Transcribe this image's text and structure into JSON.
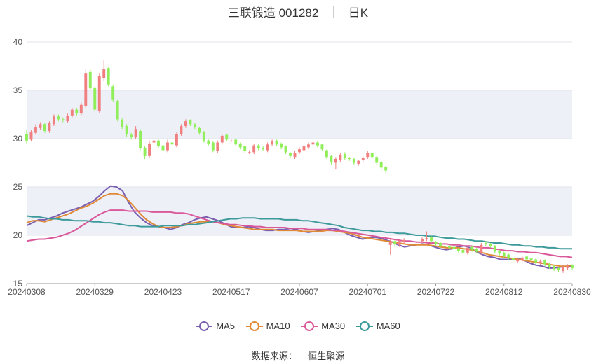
{
  "header": {
    "title": "三联锻造 001282",
    "period": "日K"
  },
  "footer": {
    "source_label": "数据来源：",
    "source_name": "恒生聚源"
  },
  "colors": {
    "up": "#f08080",
    "down": "#90ee5a",
    "ma5": "#7b5fb0",
    "ma10": "#e08a35",
    "ma30": "#d9589a",
    "ma60": "#3d9a9a",
    "band": "#eef0f8",
    "grid": "#e0e3ea",
    "axis": "#555555"
  },
  "chart_data": {
    "type": "candlestick",
    "title": "三联锻造 001282 日K",
    "ylim": [
      15,
      40
    ],
    "yticks": [
      15,
      20,
      25,
      30,
      35,
      40
    ],
    "xtick_labels": [
      "20240308",
      "20240329",
      "20240423",
      "20240517",
      "20240607",
      "20240701",
      "20240722",
      "20240812",
      "20240830"
    ],
    "num_days": 121,
    "trading_gap_days": [
      84,
      85,
      86
    ],
    "closes": [
      29.8,
      30.7,
      31.2,
      31.5,
      30.8,
      31.6,
      32.3,
      32.0,
      31.9,
      32.4,
      33.0,
      32.6,
      33.5,
      36.8,
      35.2,
      33.0,
      36.5,
      37.2,
      35.6,
      34.0,
      32.0,
      31.2,
      30.5,
      30.2,
      31.0,
      29.0,
      28.2,
      29.5,
      29.8,
      29.2,
      28.8,
      29.6,
      29.4,
      30.5,
      31.3,
      31.8,
      31.5,
      31.2,
      30.6,
      29.8,
      29.5,
      28.8,
      29.6,
      30.3,
      29.9,
      29.8,
      29.4,
      29.1,
      28.7,
      28.6,
      29.3,
      29.0,
      28.9,
      29.4,
      29.7,
      29.4,
      29.1,
      28.6,
      28.2,
      28.5,
      28.9,
      29.2,
      29.4,
      29.6,
      29.3,
      28.9,
      28.1,
      27.6,
      27.9,
      28.3,
      28.0,
      27.9,
      27.5,
      27.7,
      28.0,
      28.5,
      28.1,
      27.5,
      27.0,
      26.7,
      19.3,
      19.1,
      19.4,
      19.5,
      19.6,
      19.7,
      19.4,
      19.1,
      18.9,
      18.8,
      18.7,
      18.6,
      18.4,
      18.2,
      18.7,
      18.5,
      18.3,
      19.0,
      19.1,
      18.9,
      18.3,
      18.1,
      17.9,
      17.6,
      17.4,
      17.5,
      17.7,
      17.5,
      17.4,
      17.2,
      17.3,
      17.0,
      16.7,
      16.5,
      16.4,
      16.7,
      16.8,
      16.6,
      16.7,
      17.0,
      17.1
    ],
    "opens": [
      30.5,
      29.9,
      30.6,
      31.1,
      31.5,
      30.8,
      31.5,
      32.3,
      32.0,
      31.8,
      32.4,
      33.0,
      32.6,
      33.4,
      36.9,
      35.3,
      32.9,
      36.3,
      37.3,
      35.4,
      33.9,
      31.9,
      31.3,
      30.4,
      30.2,
      30.8,
      29.0,
      28.2,
      29.6,
      29.8,
      29.3,
      28.8,
      29.6,
      29.3,
      30.5,
      31.3,
      31.9,
      31.5,
      31.1,
      30.7,
      29.8,
      29.6,
      28.7,
      29.6,
      30.4,
      29.8,
      29.9,
      29.5,
      29.2,
      28.6,
      28.6,
      29.3,
      29.0,
      28.8,
      29.4,
      29.8,
      29.5,
      29.2,
      28.5,
      28.1,
      28.6,
      28.8,
      29.1,
      29.4,
      29.6,
      29.4,
      28.8,
      28.2,
      27.5,
      27.8,
      28.4,
      28.0,
      27.9,
      27.4,
      27.8,
      28.1,
      28.5,
      28.1,
      27.6,
      27.1,
      19.0,
      19.4,
      19.0,
      19.3,
      19.4,
      19.6,
      19.8,
      19.3,
      19.2,
      18.9,
      18.9,
      18.8,
      18.6,
      18.5,
      18.2,
      18.8,
      18.6,
      18.2,
      19.2,
      19.1,
      18.9,
      18.4,
      18.2,
      18.0,
      17.6,
      17.3,
      17.4,
      17.8,
      17.6,
      17.5,
      17.1,
      17.4,
      17.0,
      16.8,
      16.6,
      16.3,
      16.6,
      16.9,
      16.5,
      16.6,
      16.9
    ],
    "highs": [
      30.9,
      30.9,
      31.5,
      31.7,
      31.6,
      31.8,
      32.5,
      32.5,
      32.2,
      32.6,
      33.2,
      33.2,
      33.8,
      37.2,
      37.2,
      35.4,
      36.8,
      38.1,
      37.4,
      35.6,
      34.0,
      32.1,
      31.5,
      30.6,
      31.3,
      31.0,
      29.2,
      29.8,
      30.1,
      29.9,
      29.4,
      29.9,
      29.8,
      30.7,
      31.5,
      32.0,
      32.0,
      31.6,
      31.2,
      30.8,
      29.9,
      29.7,
      29.8,
      30.5,
      30.5,
      30.0,
      30.0,
      29.6,
      29.3,
      28.8,
      29.5,
      29.4,
      29.2,
      29.6,
      29.9,
      29.9,
      29.6,
      29.3,
      28.6,
      28.7,
      29.1,
      29.4,
      29.6,
      29.8,
      29.7,
      29.5,
      28.9,
      28.3,
      28.1,
      28.5,
      28.6,
      28.1,
      28.0,
      27.8,
      28.2,
      28.7,
      28.6,
      28.2,
      27.7,
      27.2,
      19.6,
      19.5,
      19.5,
      19.7,
      19.8,
      20.4,
      19.9,
      19.4,
      19.3,
      19.0,
      19.0,
      18.9,
      18.7,
      18.6,
      18.9,
      18.9,
      18.7,
      19.2,
      19.4,
      19.2,
      19.0,
      18.5,
      18.3,
      18.1,
      17.7,
      17.7,
      17.9,
      17.9,
      17.7,
      17.6,
      17.5,
      17.5,
      17.1,
      16.9,
      16.7,
      16.9,
      17.0,
      17.0,
      16.8,
      17.2,
      17.3
    ],
    "lows": [
      29.5,
      29.7,
      30.4,
      30.9,
      30.6,
      30.6,
      31.3,
      31.8,
      31.7,
      31.6,
      32.2,
      32.4,
      32.4,
      33.2,
      35.0,
      32.8,
      32.7,
      36.0,
      35.4,
      33.8,
      31.8,
      31.0,
      30.2,
      29.9,
      30.0,
      28.8,
      27.9,
      28.0,
      29.4,
      29.0,
      28.6,
      28.6,
      29.2,
      29.1,
      30.3,
      31.1,
      31.3,
      31.0,
      30.4,
      29.6,
      29.3,
      28.6,
      28.5,
      29.4,
      29.7,
      29.6,
      29.2,
      28.9,
      28.5,
      28.4,
      28.4,
      28.8,
      28.7,
      28.6,
      29.2,
      29.2,
      28.9,
      28.4,
      28.0,
      27.9,
      28.4,
      28.6,
      28.9,
      29.2,
      29.1,
      28.7,
      27.9,
      27.3,
      26.8,
      27.6,
      27.8,
      27.7,
      27.3,
      27.2,
      27.6,
      27.9,
      27.9,
      27.3,
      26.7,
      26.4,
      18.0,
      18.8,
      18.8,
      19.1,
      19.2,
      19.4,
      19.2,
      18.9,
      18.7,
      18.6,
      18.5,
      18.4,
      18.2,
      17.8,
      18.0,
      18.3,
      18.1,
      18.0,
      18.9,
      18.7,
      18.1,
      17.9,
      17.7,
      17.4,
      17.2,
      17.1,
      17.2,
      17.3,
      17.2,
      17.0,
      16.9,
      16.8,
      16.5,
      16.3,
      16.2,
      16.1,
      16.4,
      16.4,
      16.3,
      16.5,
      16.8
    ],
    "series": [
      {
        "name": "MA5",
        "values": [
          21.0,
          21.3,
          21.6,
          21.6,
          21.8,
          22.0,
          22.3,
          22.5,
          22.7,
          22.9,
          23.2,
          23.5,
          24.0,
          24.6,
          25.1,
          25.0,
          24.6,
          23.4,
          22.4,
          21.8,
          21.3,
          21.0,
          20.9,
          20.8,
          20.6,
          20.8,
          21.1,
          21.3,
          21.6,
          21.8,
          21.9,
          21.7,
          21.5,
          21.2,
          20.9,
          20.8,
          20.8,
          20.9,
          20.8,
          20.6,
          20.5,
          20.5,
          20.6,
          20.6,
          20.7,
          20.6,
          20.4,
          20.3,
          20.4,
          20.5,
          20.6,
          20.7,
          20.6,
          20.3,
          20.0,
          19.8,
          19.6,
          19.7,
          19.8,
          19.7,
          19.5,
          19.3,
          19.0,
          18.8,
          18.9,
          19.0,
          19.1,
          19.0,
          18.8,
          18.6,
          18.5,
          18.6,
          18.8,
          18.9,
          18.7,
          18.3,
          18.0,
          17.8,
          17.7,
          17.5,
          17.5,
          17.5,
          17.6,
          17.4,
          17.1,
          16.9,
          16.8,
          16.6,
          16.6,
          16.7,
          16.8,
          16.8
        ]
      },
      {
        "name": "MA10",
        "values": [
          21.3,
          21.5,
          21.5,
          21.4,
          21.6,
          21.8,
          22.0,
          22.2,
          22.5,
          22.8,
          23.0,
          23.3,
          23.7,
          24.1,
          24.3,
          24.3,
          24.1,
          23.6,
          22.9,
          22.2,
          21.6,
          21.2,
          20.9,
          20.8,
          20.8,
          20.9,
          21.0,
          21.2,
          21.3,
          21.4,
          21.4,
          21.4,
          21.3,
          21.1,
          21.0,
          20.9,
          20.8,
          20.7,
          20.6,
          20.6,
          20.6,
          20.6,
          20.5,
          20.5,
          20.5,
          20.5,
          20.4,
          20.4,
          20.4,
          20.4,
          20.5,
          20.5,
          20.4,
          20.3,
          20.2,
          20.0,
          19.8,
          19.7,
          19.6,
          19.5,
          19.4,
          19.3,
          19.2,
          19.1,
          19.0,
          19.0,
          19.0,
          19.0,
          18.9,
          18.8,
          18.7,
          18.7,
          18.7,
          18.6,
          18.5,
          18.4,
          18.2,
          18.0,
          17.9,
          17.8,
          17.7,
          17.6,
          17.5,
          17.4,
          17.3,
          17.2,
          17.1,
          17.0,
          16.9,
          16.8,
          16.8,
          16.9
        ]
      },
      {
        "name": "MA30",
        "values": [
          19.4,
          19.5,
          19.6,
          19.6,
          19.7,
          19.8,
          20.0,
          20.2,
          20.5,
          20.9,
          21.3,
          21.7,
          22.1,
          22.4,
          22.6,
          22.6,
          22.6,
          22.5,
          22.5,
          22.5,
          22.5,
          22.4,
          22.4,
          22.4,
          22.4,
          22.3,
          22.3,
          22.2,
          22.0,
          21.8,
          21.6,
          21.4,
          21.3,
          21.2,
          21.1,
          21.1,
          21.0,
          21.0,
          20.9,
          20.9,
          20.8,
          20.8,
          20.8,
          20.8,
          20.7,
          20.7,
          20.7,
          20.6,
          20.6,
          20.6,
          20.6,
          20.5,
          20.5,
          20.4,
          20.3,
          20.2,
          20.1,
          20.0,
          19.9,
          19.8,
          19.7,
          19.6,
          19.5,
          19.4,
          19.4,
          19.3,
          19.3,
          19.2,
          19.2,
          19.1,
          19.1,
          19.0,
          19.0,
          18.9,
          18.9,
          18.8,
          18.7,
          18.7,
          18.6,
          18.5,
          18.4,
          18.4,
          18.3,
          18.3,
          18.2,
          18.2,
          18.1,
          18.0,
          17.9,
          17.8,
          17.8,
          17.7
        ]
      },
      {
        "name": "MA60",
        "values": [
          22.0,
          21.9,
          21.9,
          21.8,
          21.7,
          21.7,
          21.6,
          21.6,
          21.5,
          21.5,
          21.5,
          21.4,
          21.4,
          21.3,
          21.3,
          21.2,
          21.1,
          21.0,
          21.0,
          20.9,
          20.9,
          20.9,
          20.9,
          21.0,
          21.0,
          21.0,
          21.0,
          21.1,
          21.1,
          21.2,
          21.3,
          21.4,
          21.5,
          21.6,
          21.7,
          21.7,
          21.8,
          21.8,
          21.8,
          21.7,
          21.7,
          21.7,
          21.7,
          21.6,
          21.6,
          21.6,
          21.5,
          21.5,
          21.4,
          21.3,
          21.2,
          21.1,
          21.0,
          20.8,
          20.7,
          20.6,
          20.5,
          20.5,
          20.4,
          20.4,
          20.3,
          20.3,
          20.2,
          20.2,
          20.1,
          20.0,
          20.0,
          19.9,
          19.9,
          19.8,
          19.7,
          19.7,
          19.6,
          19.6,
          19.5,
          19.4,
          19.4,
          19.3,
          19.2,
          19.2,
          19.1,
          19.0,
          19.0,
          18.9,
          18.9,
          18.8,
          18.8,
          18.7,
          18.7,
          18.6,
          18.6,
          18.6
        ]
      }
    ],
    "legend": [
      "MA5",
      "MA10",
      "MA30",
      "MA60"
    ],
    "legend_position": "bottom-center",
    "grid": true
  }
}
